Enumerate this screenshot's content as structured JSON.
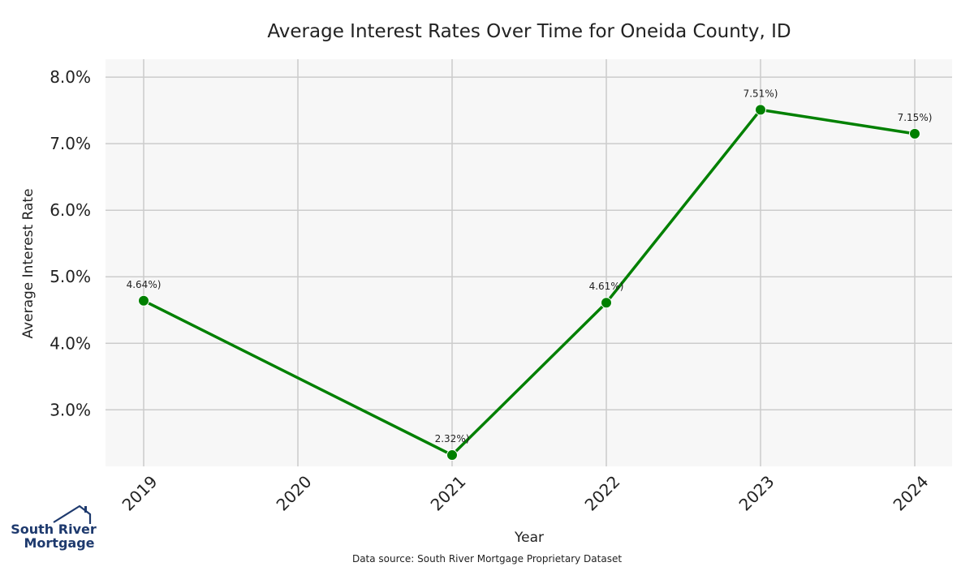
{
  "chart_data": {
    "type": "line",
    "title": "Average Interest Rates Over Time for Oneida County, ID",
    "xlabel": "Year",
    "ylabel": "Average Interest Rate",
    "categories": [
      "2019",
      "2020",
      "2021",
      "2022",
      "2023",
      "2024"
    ],
    "series": [
      {
        "x": [
          "2019",
          "2021",
          "2022",
          "2023",
          "2024"
        ],
        "values": [
          4.64,
          2.32,
          4.61,
          7.51,
          7.15
        ],
        "labels": [
          "4.64%)",
          "2.32%)",
          "4.61%)",
          "7.51%)",
          "7.15%)"
        ],
        "color": "#008000"
      }
    ],
    "yticks": [
      "3.0%",
      "4.0%",
      "5.0%",
      "6.0%",
      "7.0%",
      "8.0%"
    ],
    "ytick_values": [
      3,
      4,
      5,
      6,
      7,
      8
    ],
    "ylim": [
      2.15,
      8.27
    ],
    "grid": true,
    "plot_background": "#f7f7f7",
    "grid_color": "#cccccc"
  },
  "source_text": "Data source: South River Mortgage Proprietary Dataset",
  "logo": {
    "line1": "South River",
    "line2": "Mortgage",
    "color": "#1e3a6e",
    "icon": "house-icon"
  }
}
